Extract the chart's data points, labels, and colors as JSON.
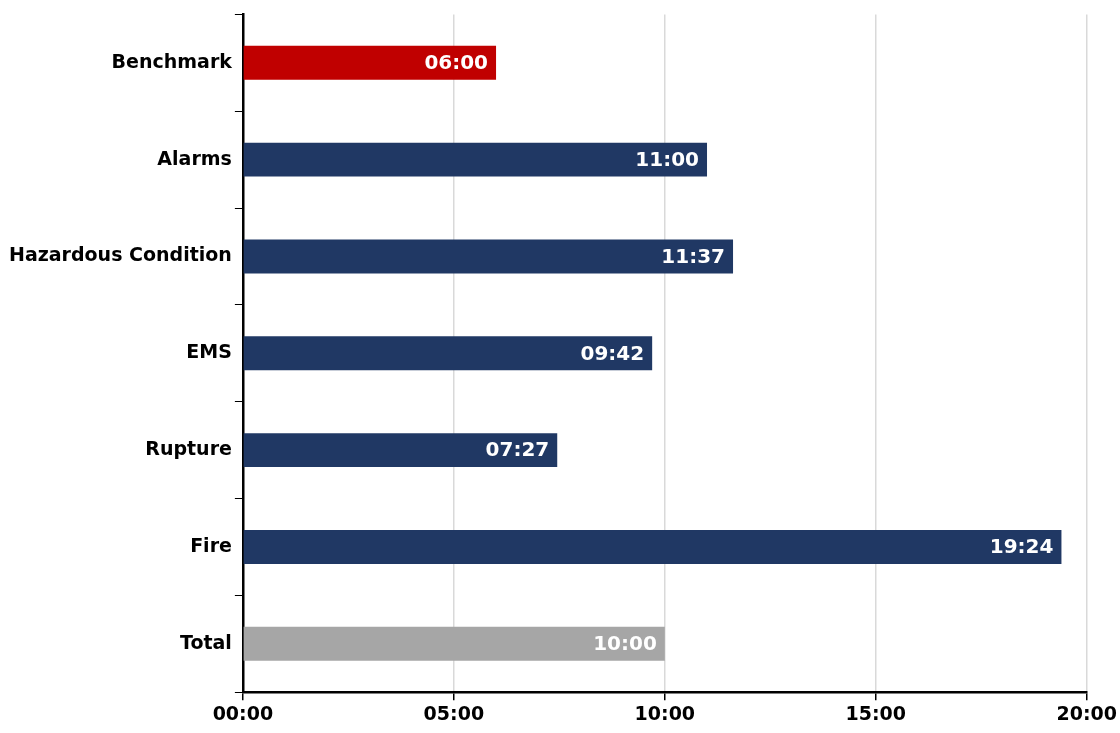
{
  "chart_data": {
    "type": "bar",
    "orientation": "horizontal",
    "categories": [
      "Benchmark",
      "Alarms",
      "Hazardous Condition",
      "EMS",
      "Rupture",
      "Fire",
      "Total"
    ],
    "values": [
      6,
      11,
      11.6167,
      9.7,
      7.45,
      19.4,
      10
    ],
    "colors": [
      "#c00000",
      "#203864",
      "#203864",
      "#203864",
      "#203864",
      "#203864",
      "#a6a6a6"
    ],
    "value_labels": [
      "06:00",
      "11:00",
      "11:37",
      "09:42",
      "07:27",
      "19:24",
      "10:00"
    ],
    "xlim": [
      0,
      20
    ],
    "xticks": [
      {
        "value": 0,
        "label": "00:00"
      },
      {
        "value": 5,
        "label": "05:00"
      },
      {
        "value": 10,
        "label": "10:00"
      },
      {
        "value": 15,
        "label": "15:00"
      },
      {
        "value": 20,
        "label": "20:00"
      }
    ],
    "grid": "x",
    "legend": false
  }
}
